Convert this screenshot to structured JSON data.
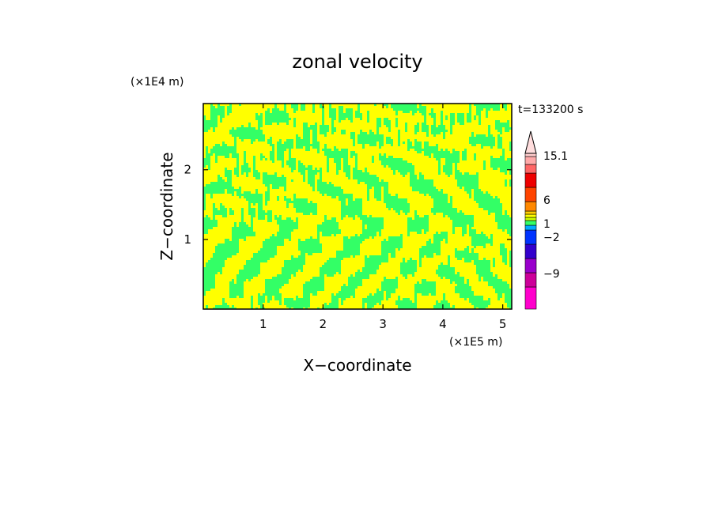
{
  "chart_data": {
    "type": "heatmap",
    "title": "zonal velocity",
    "xlabel": "X−coordinate",
    "ylabel": "Z−coordinate",
    "x_unit": "(×1E5 m)",
    "y_unit": "(×1E4 m)",
    "time_label": "t=133200 s",
    "xlim": [
      0,
      5.15
    ],
    "ylim": [
      0,
      2.95
    ],
    "x_ticks": [
      {
        "value": 1,
        "label": "1"
      },
      {
        "value": 2,
        "label": "2"
      },
      {
        "value": 3,
        "label": "3"
      },
      {
        "value": 4,
        "label": "4"
      },
      {
        "value": 5,
        "label": "5"
      }
    ],
    "y_ticks": [
      {
        "value": 1,
        "label": "1"
      },
      {
        "value": 2,
        "label": "2"
      }
    ],
    "field_colors": [
      "#ffff00",
      "#33ff66"
    ],
    "field_description_colors_dominant": "yellow and green bands (values near 0 to 1)",
    "colorbar": {
      "levels": [
        {
          "color": "#ff00cc"
        },
        {
          "color": "#cc0099"
        },
        {
          "color": "#9900cc"
        },
        {
          "color": "#3300cc"
        },
        {
          "color": "#0033ff"
        },
        {
          "color": "#00aaff"
        },
        {
          "color": "#33ff66"
        },
        {
          "color": "#ccff00"
        },
        {
          "color": "#ffff00"
        },
        {
          "color": "#ffcc00"
        },
        {
          "color": "#ff8800"
        },
        {
          "color": "#ff4400"
        },
        {
          "color": "#ee0000"
        },
        {
          "color": "#ff6666"
        },
        {
          "color": "#ffaaaa"
        },
        {
          "color": "#ffcccc"
        }
      ],
      "labels": [
        {
          "value": -9,
          "label": "−9"
        },
        {
          "value": -2,
          "label": "−2"
        },
        {
          "value": 1,
          "label": "1"
        },
        {
          "value": 6,
          "label": "6"
        },
        {
          "value": 15.1,
          "label": "15.1"
        }
      ]
    }
  }
}
